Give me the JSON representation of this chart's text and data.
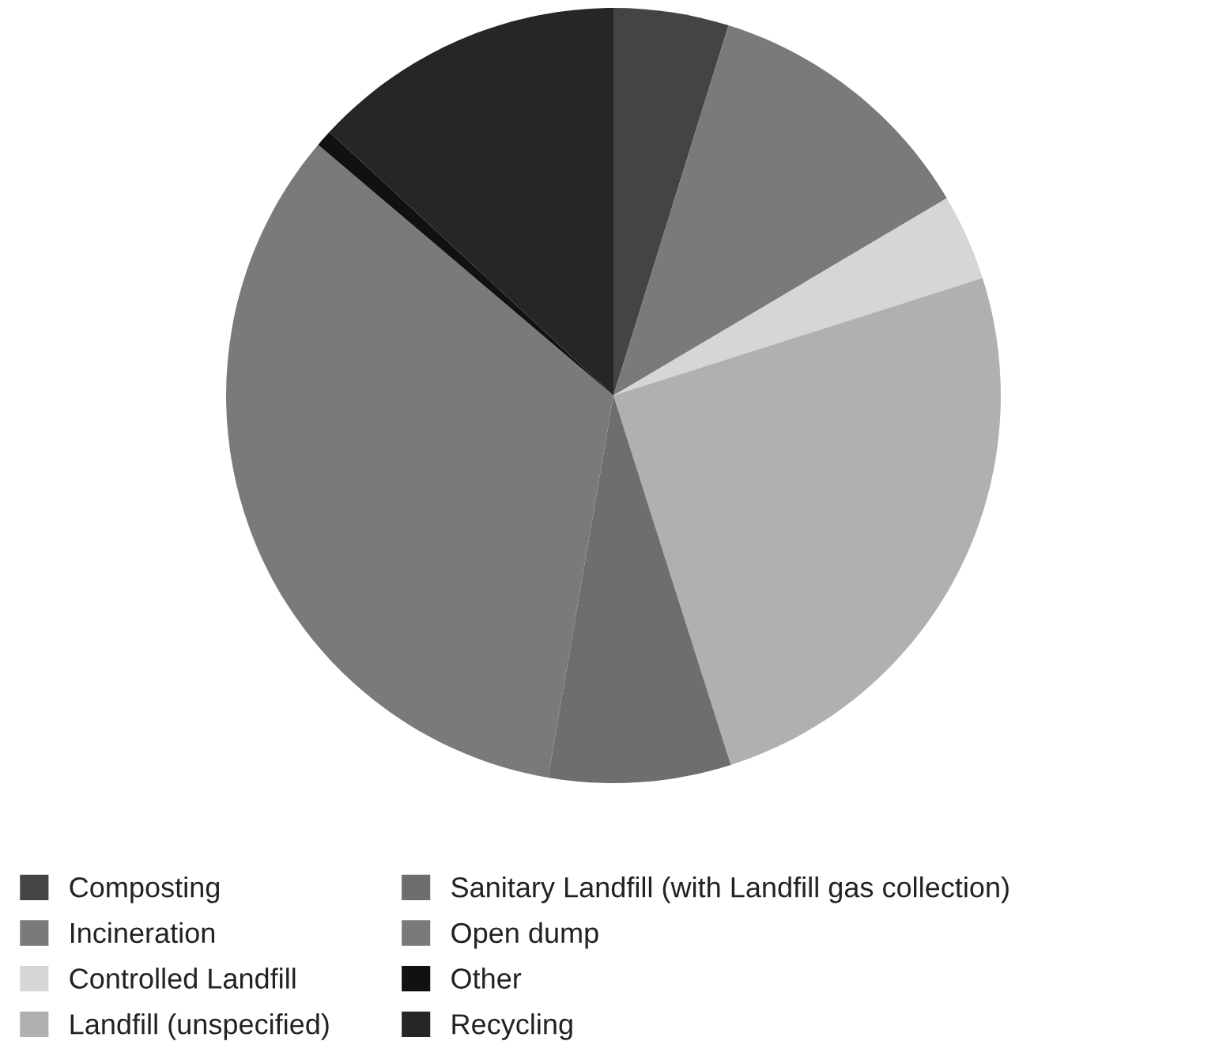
{
  "chart_data": {
    "type": "pie",
    "categories": [
      "Composting",
      "Incineration",
      "Controlled Landfill",
      "Landfill (unspecified)",
      "Sanitary Landfill (with Landfill gas collection)",
      "Open dump",
      "Other",
      "Recycling"
    ],
    "values": [
      4.8,
      11.7,
      3.6,
      25,
      7.6,
      33.5,
      0.7,
      13.1
    ],
    "colors": [
      "#444444",
      "#7a7a7a",
      "#d6d6d6",
      "#b0b0b0",
      "#6e6e6e",
      "#7a7a7a",
      "#111111",
      "#262626"
    ],
    "legend": "bottom"
  }
}
